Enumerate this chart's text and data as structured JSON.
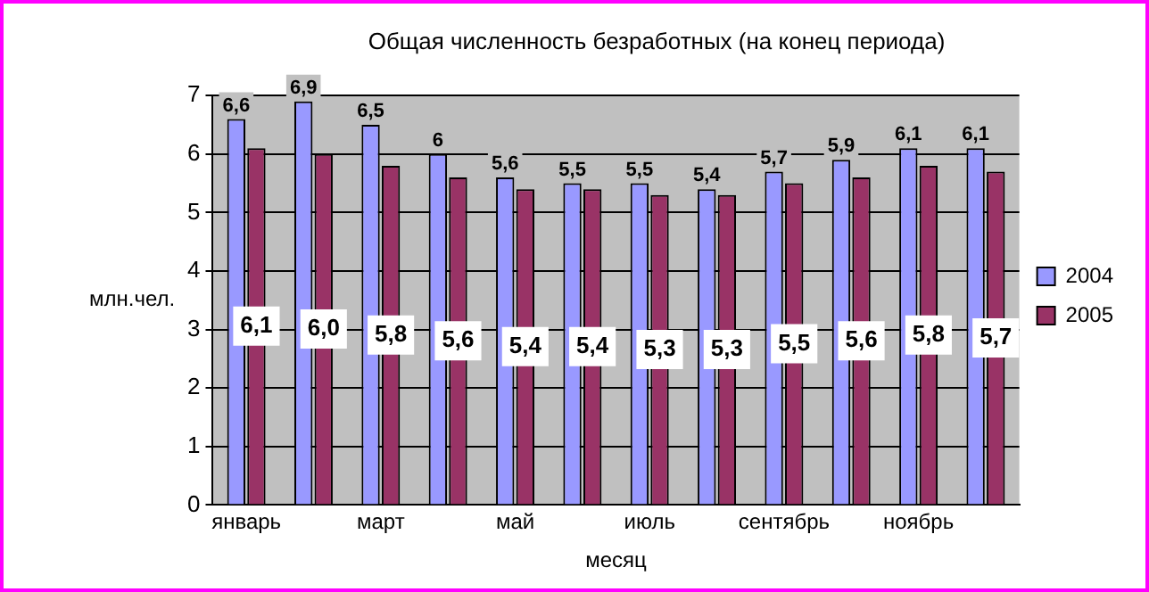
{
  "chart_data": {
    "type": "bar",
    "title": "Общая численность безработных (на конец периода)",
    "xlabel": "месяц",
    "ylabel": "млн.чел.",
    "categories": [
      "январь",
      null,
      "март",
      null,
      "май",
      null,
      "июль",
      null,
      "сентябрь",
      null,
      "ноябрь",
      null
    ],
    "series": [
      {
        "name": "2004",
        "color": "#9999ff",
        "values": [
          6.6,
          6.9,
          6.5,
          6,
          5.6,
          5.5,
          5.5,
          5.4,
          5.7,
          5.9,
          6.1,
          6.1
        ],
        "value_labels": [
          "6,6",
          "6,9",
          "6,5",
          "6",
          "5,6",
          "5,5",
          "5,5",
          "5,4",
          "5,7",
          "5,9",
          "6,1",
          "6,1"
        ]
      },
      {
        "name": "2005",
        "color": "#993366",
        "values": [
          6.1,
          6.0,
          5.8,
          5.6,
          5.4,
          5.4,
          5.3,
          5.3,
          5.5,
          5.6,
          5.8,
          5.7
        ],
        "value_labels": [
          "6,1",
          "6,0",
          "5,8",
          "5,6",
          "5,4",
          "5,4",
          "5,3",
          "5,3",
          "5,5",
          "5,6",
          "5,8",
          "5,7"
        ]
      }
    ],
    "ylim": [
      0,
      7
    ],
    "yticks": [
      0,
      1,
      2,
      3,
      4,
      5,
      6,
      7
    ],
    "grid": "y",
    "legend": "right"
  }
}
